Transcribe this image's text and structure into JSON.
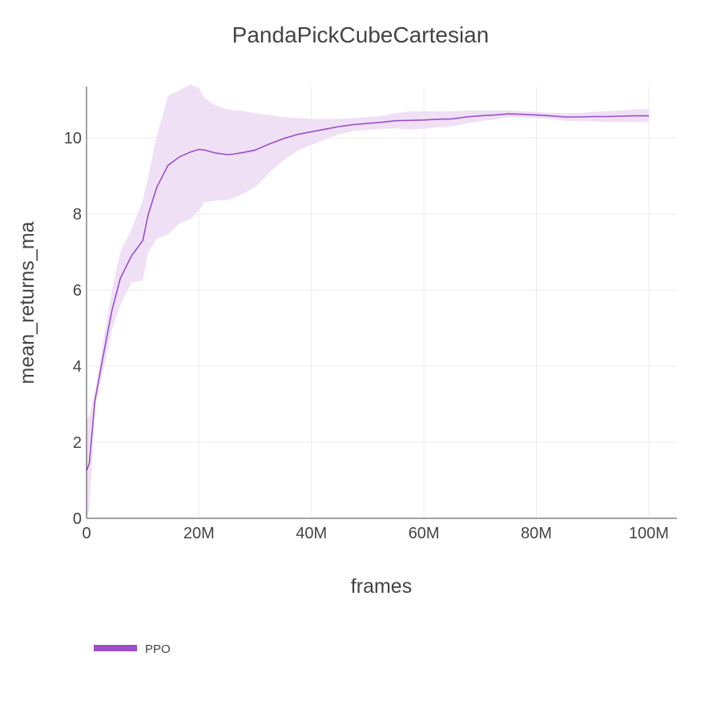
{
  "chart_data": {
    "type": "line",
    "title": "PandaPickCubeCartesian",
    "xlabel": "frames",
    "ylabel": "mean_returns_ma",
    "xlim": [
      0,
      105000000
    ],
    "ylim": [
      0,
      11.35
    ],
    "x_ticks": [
      0,
      20000000,
      40000000,
      60000000,
      80000000,
      100000000
    ],
    "x_tick_labels": [
      "0",
      "20M",
      "40M",
      "60M",
      "80M",
      "100M"
    ],
    "y_ticks": [
      0,
      2,
      4,
      6,
      8,
      10
    ],
    "y_tick_labels": [
      "0",
      "2",
      "4",
      "6",
      "8",
      "10"
    ],
    "grid": true,
    "legend_position": "bottom-left",
    "series": [
      {
        "name": "PPO",
        "color": "#9b4dca",
        "band_color": "#efe0f6",
        "x": [
          0,
          500000,
          1500000,
          3000000,
          4500000,
          6000000,
          8000000,
          10000000,
          11000000,
          12500000,
          14500000,
          16500000,
          18500000,
          20000000,
          21000000,
          23000000,
          25000000,
          26000000,
          28000000,
          30000000,
          32500000,
          35000000,
          37500000,
          40000000,
          42500000,
          45000000,
          47500000,
          50000000,
          52500000,
          55000000,
          57500000,
          60000000,
          62500000,
          65000000,
          67500000,
          70000000,
          72500000,
          75000000,
          77500000,
          80000000,
          82500000,
          85000000,
          87500000,
          90000000,
          92500000,
          95000000,
          97500000,
          100000000
        ],
        "y": [
          1.25,
          1.45,
          3.1,
          4.3,
          5.45,
          6.3,
          6.9,
          7.3,
          8.0,
          8.7,
          9.28,
          9.5,
          9.63,
          9.7,
          9.68,
          9.6,
          9.56,
          9.57,
          9.62,
          9.68,
          9.84,
          9.98,
          10.09,
          10.16,
          10.23,
          10.3,
          10.35,
          10.38,
          10.41,
          10.45,
          10.46,
          10.47,
          10.49,
          10.5,
          10.55,
          10.58,
          10.6,
          10.63,
          10.62,
          10.6,
          10.58,
          10.55,
          10.55,
          10.56,
          10.56,
          10.57,
          10.58,
          10.58
        ],
        "upper": [
          2.6,
          2.7,
          3.3,
          4.7,
          5.95,
          7.0,
          7.6,
          8.35,
          9.0,
          10.05,
          11.1,
          11.25,
          11.4,
          11.3,
          11.05,
          10.85,
          10.75,
          10.73,
          10.7,
          10.65,
          10.6,
          10.55,
          10.52,
          10.5,
          10.5,
          10.5,
          10.52,
          10.55,
          10.58,
          10.65,
          10.7,
          10.7,
          10.7,
          10.7,
          10.72,
          10.72,
          10.72,
          10.72,
          10.7,
          10.68,
          10.66,
          10.65,
          10.66,
          10.68,
          10.7,
          10.72,
          10.75,
          10.75
        ]
      }
    ]
  }
}
